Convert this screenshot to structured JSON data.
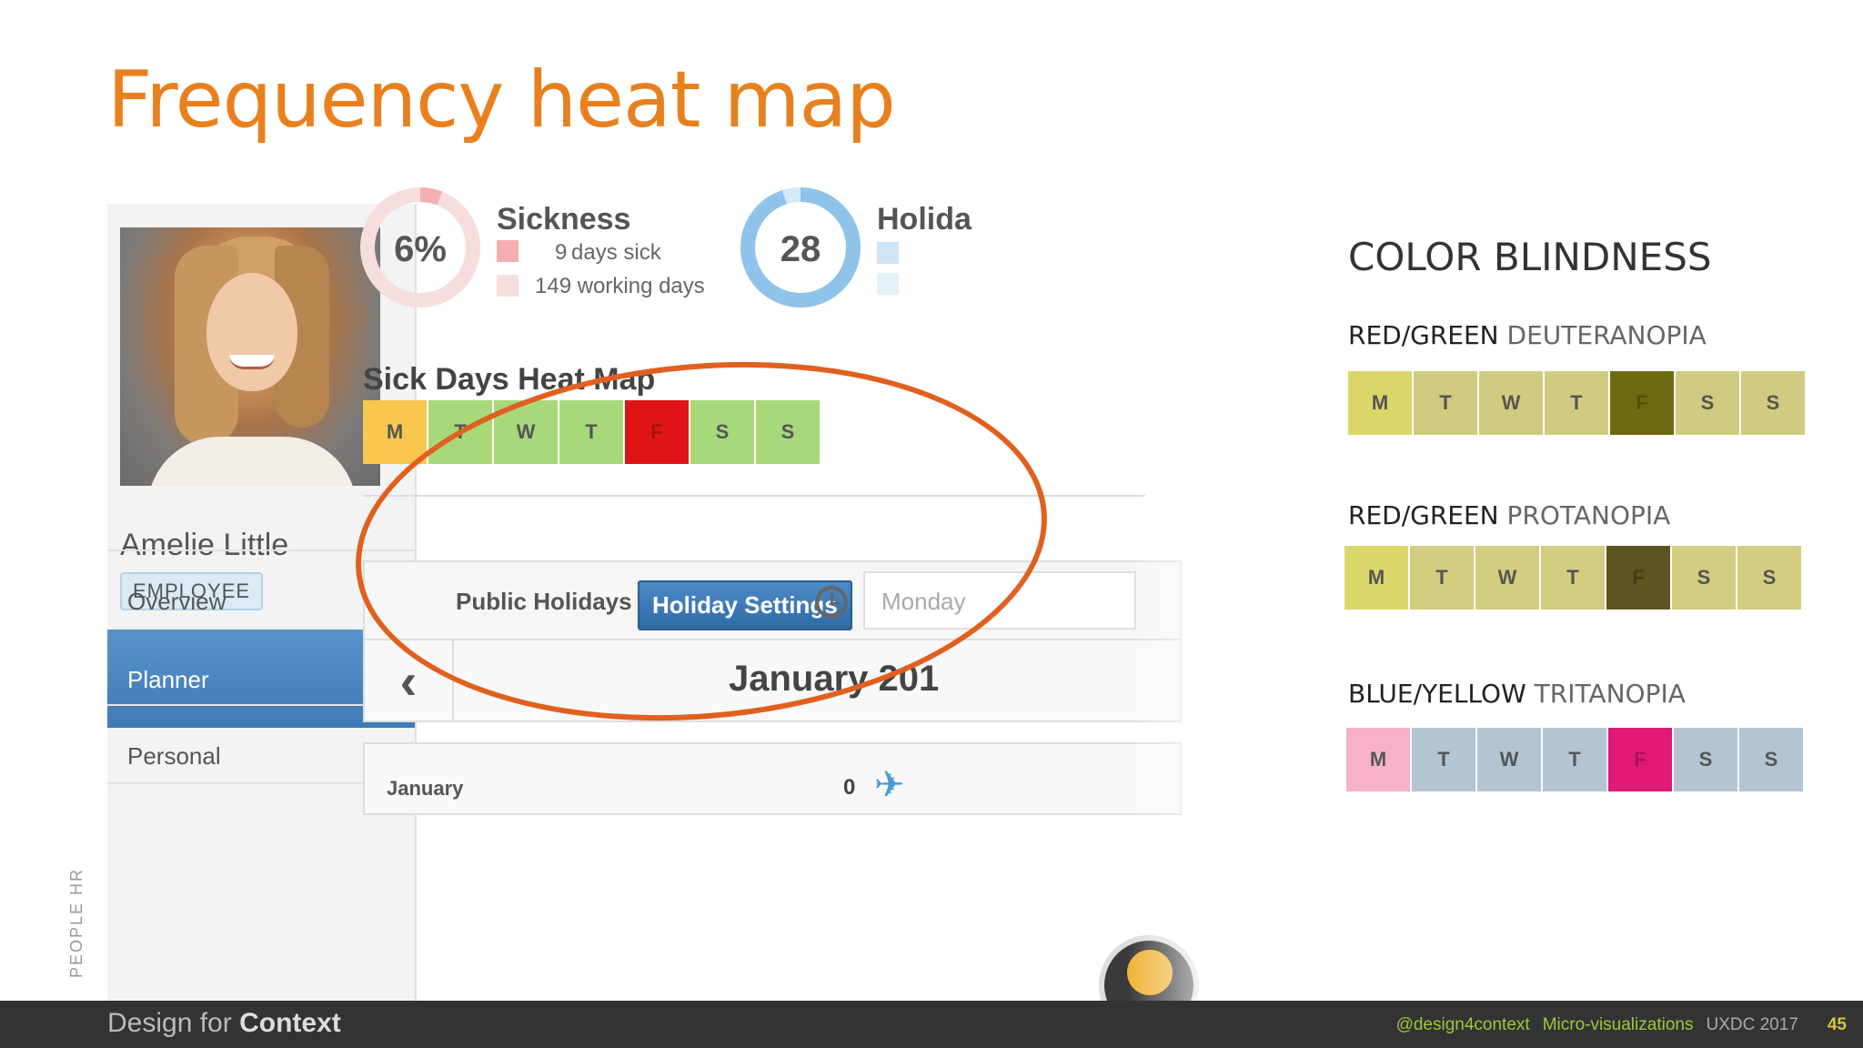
{
  "slide": {
    "title": "Frequency heat map",
    "side_label": "PEOPLE HR"
  },
  "app": {
    "employee": {
      "name": "Amelie Little",
      "role": "EMPLOYEE"
    },
    "nav": [
      {
        "label": "Overview",
        "active": false
      },
      {
        "label": "Planner",
        "active": true
      },
      {
        "label": "Personal",
        "active": false
      }
    ],
    "sickness": {
      "title": "Sickness",
      "percent_label": "6%",
      "percent": 6,
      "days_sick": "9",
      "days_sick_text": "days sick",
      "working_days": "149 working days",
      "color": "#f4b0b0"
    },
    "holiday": {
      "title": "Holida",
      "count_label": "28",
      "fill_fraction": 0.95,
      "color": "#8fc3ea"
    },
    "heatmap": {
      "title": "Sick Days Heat Map",
      "days": [
        "M",
        "T",
        "W",
        "T",
        "F",
        "S",
        "S"
      ],
      "colors": [
        "#f9c74f",
        "#a7d97a",
        "#a7d97a",
        "#a7d97a",
        "#e01414",
        "#a7d97a",
        "#a7d97a"
      ]
    },
    "toolbar": {
      "public_holidays": "Public Holidays ▾",
      "holiday_settings": "Holiday Settings",
      "select_value": "Monday"
    },
    "calendar": {
      "prev": "‹",
      "month_label": "January 201",
      "row_month": "January",
      "row_count": "0"
    }
  },
  "color_blindness": {
    "title": "COLOR BLINDNESS",
    "variants": [
      {
        "label_strong": "RED/GREEN",
        "label_light": "DEUTERANOPIA",
        "colors": [
          "#dcd56a",
          "#d0cb80",
          "#d0cb80",
          "#d0cb80",
          "#6f6a10",
          "#d0cb80",
          "#d0cb80"
        ]
      },
      {
        "label_strong": "RED/GREEN",
        "label_light": "PROTANOPIA",
        "colors": [
          "#dad66a",
          "#d3cd80",
          "#d3cd80",
          "#d3cd80",
          "#5a5420",
          "#d3cd80",
          "#d3cd80"
        ]
      },
      {
        "label_strong": "BLUE/YELLOW",
        "label_light": "TRITANOPIA",
        "colors": [
          "#f7b2c8",
          "#b3c4d2",
          "#b3c4d2",
          "#b3c4d2",
          "#e0187a",
          "#b3c4d2",
          "#b3c4d2"
        ]
      }
    ]
  },
  "footer": {
    "brand_light": "Design for",
    "brand_bold": "Context",
    "handle": "@design4context",
    "topic": "Micro-visualizations",
    "event": "UXDC 2017",
    "page": "45"
  }
}
